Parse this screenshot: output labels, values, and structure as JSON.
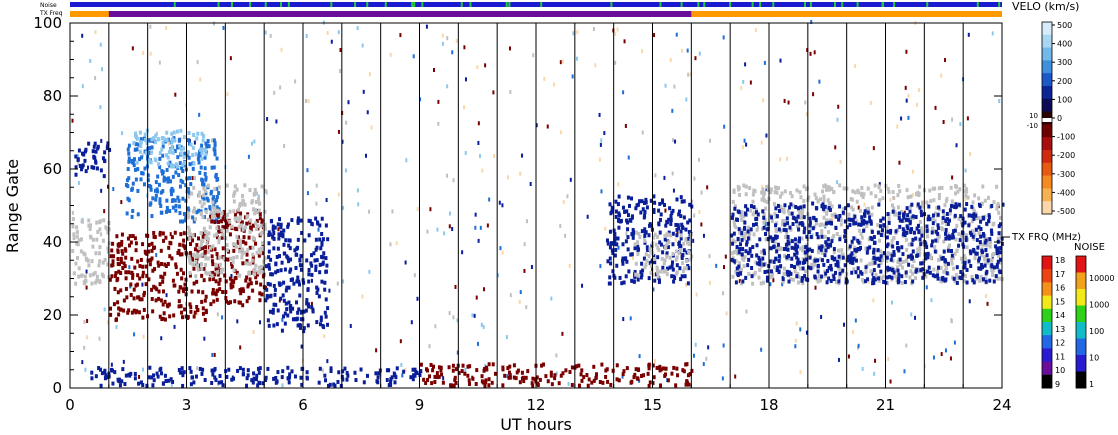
{
  "header": {
    "noise_label": "Noise",
    "txfreq_label": "TX Freq"
  },
  "colors": {
    "noise_bar": "#1a1ad0",
    "noise_ticks": "#22cc33",
    "txfreq_orange": "#ff9900",
    "txfreq_purple": "#6a0d9a",
    "ground_scatter": "#c0c0c0"
  },
  "chart_data": {
    "type": "heatmap",
    "title": "",
    "xlabel": "UT hours",
    "ylabel": "Range Gate",
    "xlim": [
      0,
      24
    ],
    "ylim": [
      0,
      100
    ],
    "xticks": [
      "0",
      "3",
      "6",
      "9",
      "12",
      "15",
      "18",
      "21",
      "24"
    ],
    "yticks": [
      "0",
      "20",
      "40",
      "60",
      "80",
      "100"
    ],
    "scan_boundaries_hours": [
      1,
      2,
      3,
      4,
      5,
      6,
      7,
      8,
      9,
      10,
      11,
      12,
      13,
      14,
      15,
      16,
      17,
      18,
      19,
      20,
      21,
      22,
      23,
      24
    ],
    "txfreq_purple_span_hours": [
      1,
      16
    ],
    "scatter_regions": [
      {
        "kind": "ground",
        "x": [
          0,
          1
        ],
        "y": [
          28,
          46
        ],
        "color": "#c0c0c0"
      },
      {
        "kind": "velocity",
        "x": [
          0.1,
          1
        ],
        "y": [
          57,
          67
        ],
        "color": "#0a1e9a"
      },
      {
        "kind": "velocity",
        "x": [
          1,
          3.5
        ],
        "y": [
          18,
          42
        ],
        "color": "#7a0000"
      },
      {
        "kind": "velocity",
        "x": [
          1.4,
          3.8
        ],
        "y": [
          45,
          68
        ],
        "color": "#1e6fd6"
      },
      {
        "kind": "velocity",
        "x": [
          1.6,
          3.5
        ],
        "y": [
          60,
          70
        ],
        "color": "#8cc7ee"
      },
      {
        "kind": "velocity",
        "x": [
          3.5,
          5
        ],
        "y": [
          22,
          48
        ],
        "color": "#7a0000"
      },
      {
        "kind": "velocity",
        "x": [
          5,
          6.6
        ],
        "y": [
          15,
          46
        ],
        "color": "#0a1e9a"
      },
      {
        "kind": "ground",
        "x": [
          3,
          5
        ],
        "y": [
          30,
          55
        ],
        "color": "#c0c0c0"
      },
      {
        "kind": "velocity",
        "x": [
          13.8,
          16
        ],
        "y": [
          28,
          52
        ],
        "color": "#0a1e9a"
      },
      {
        "kind": "ground",
        "x": [
          14.5,
          16
        ],
        "y": [
          30,
          42
        ],
        "color": "#c0c0c0"
      },
      {
        "kind": "ground",
        "x": [
          17,
          24
        ],
        "y": [
          28,
          55
        ],
        "color": "#c0c0c0"
      },
      {
        "kind": "velocity",
        "x": [
          17,
          24
        ],
        "y": [
          28,
          50
        ],
        "color": "#0a1e9a"
      },
      {
        "kind": "velocity",
        "x": [
          0.5,
          9
        ],
        "y": [
          0,
          5
        ],
        "color": "#0a1e9a"
      },
      {
        "kind": "velocity",
        "x": [
          9,
          16
        ],
        "y": [
          0,
          6
        ],
        "color": "#7a0000"
      }
    ],
    "colorbars": [
      {
        "name": "VELO (km/s)",
        "ticks": [
          "500",
          "400",
          "300",
          "200",
          "100",
          "0",
          "-100",
          "-200",
          "-300",
          "-400",
          "-500"
        ],
        "center_labels": [
          "10",
          "-10"
        ],
        "colors": [
          "#d6ecfa",
          "#a8d6f3",
          "#72b8ea",
          "#3f8fdc",
          "#1b58c8",
          "#0b2596",
          "#0a0a55",
          "#2a0000",
          "#6e0000",
          "#a80e0e",
          "#d02a10",
          "#e85a10",
          "#f48a20",
          "#f8b050",
          "#fad7a8"
        ]
      },
      {
        "name": "TX FRQ (MHz)",
        "ticks": [
          "18",
          "17",
          "16",
          "15",
          "14",
          "13",
          "12",
          "11",
          "10",
          "9"
        ],
        "colors": [
          "#e11515",
          "#ee4510",
          "#f6901a",
          "#f2e81a",
          "#2fd21a",
          "#0fbcc8",
          "#2268e6",
          "#2a1ad2",
          "#6a0d9a",
          "#000000"
        ]
      },
      {
        "name": "NOISE",
        "ticks": [
          "10000",
          "1000",
          "100",
          "10",
          "1"
        ],
        "colors": [
          "#e11515",
          "#f2a21a",
          "#f2e81a",
          "#2fd21a",
          "#10bcc8",
          "#2268e6",
          "#2a1ad2",
          "#000000"
        ]
      }
    ]
  }
}
